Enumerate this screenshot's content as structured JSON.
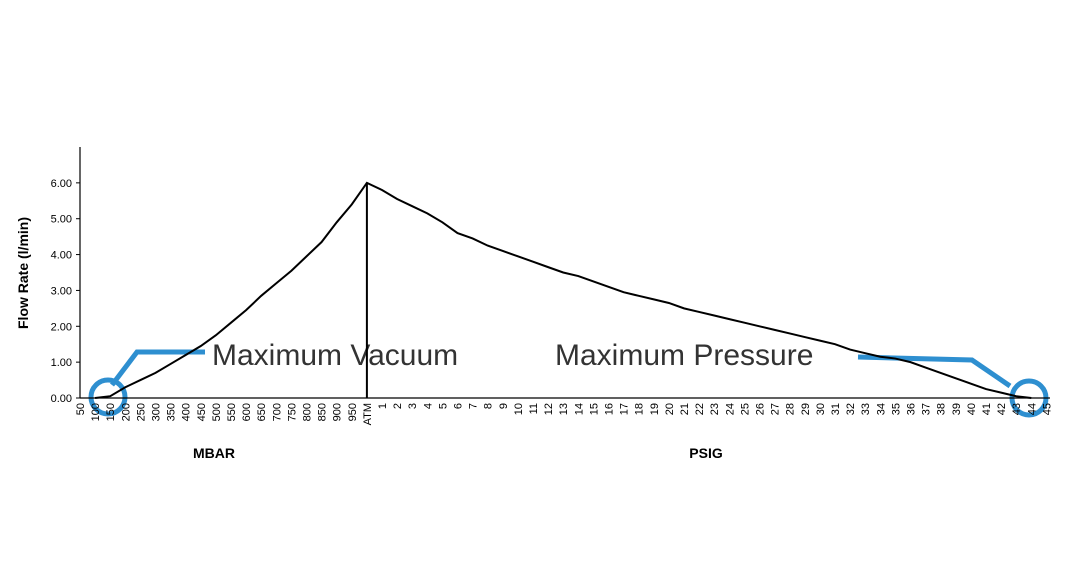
{
  "chart_data": {
    "type": "line",
    "y_label": "Flow Rate (l/min)",
    "categories": [
      "50",
      "100",
      "150",
      "200",
      "250",
      "300",
      "350",
      "400",
      "450",
      "500",
      "550",
      "600",
      "650",
      "700",
      "750",
      "800",
      "850",
      "900",
      "950",
      "ATM",
      "1",
      "2",
      "3",
      "4",
      "5",
      "6",
      "7",
      "8",
      "9",
      "10",
      "11",
      "12",
      "13",
      "14",
      "15",
      "16",
      "17",
      "18",
      "19",
      "20",
      "21",
      "22",
      "23",
      "24",
      "25",
      "26",
      "27",
      "28",
      "29",
      "30",
      "31",
      "32",
      "33",
      "34",
      "35",
      "36",
      "37",
      "38",
      "39",
      "40",
      "41",
      "42",
      "43",
      "44",
      "45"
    ],
    "series": [
      {
        "name": "Flow Rate",
        "color": "#000000",
        "values": [
          null,
          0,
          0.05,
          0.3,
          0.5,
          0.7,
          0.95,
          1.2,
          1.45,
          1.75,
          2.1,
          2.45,
          2.85,
          3.2,
          3.55,
          3.95,
          4.35,
          4.9,
          5.4,
          6.0,
          5.8,
          5.55,
          5.35,
          5.15,
          4.9,
          4.6,
          4.45,
          4.25,
          4.1,
          3.95,
          3.8,
          3.65,
          3.5,
          3.4,
          3.25,
          3.1,
          2.95,
          2.85,
          2.75,
          2.65,
          2.5,
          2.4,
          2.3,
          2.2,
          2.1,
          2.0,
          1.9,
          1.8,
          1.7,
          1.6,
          1.5,
          1.35,
          1.25,
          1.15,
          1.1,
          1.0,
          0.85,
          0.7,
          0.55,
          0.4,
          0.25,
          0.15,
          0.05,
          0,
          null
        ]
      }
    ],
    "ylim": [
      0,
      7
    ],
    "yticks": [
      {
        "value": 0,
        "label": "0.00"
      },
      {
        "value": 1,
        "label": "1.00"
      },
      {
        "value": 2,
        "label": "2.00"
      },
      {
        "value": 3,
        "label": "3.00"
      },
      {
        "value": 4,
        "label": "4.00"
      },
      {
        "value": 5,
        "label": "5.00"
      },
      {
        "value": 6,
        "label": "6.00"
      }
    ],
    "grid": false,
    "group_labels": [
      "MBAR",
      "PSIG"
    ],
    "annotations": [
      "Maximum Vacuum",
      "Maximum Pressure"
    ]
  }
}
